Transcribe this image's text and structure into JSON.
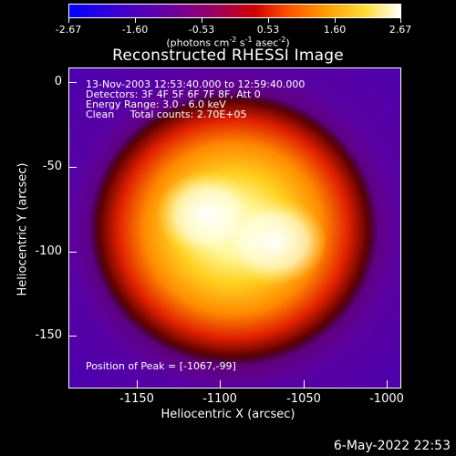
{
  "colorbar": {
    "ticks": [
      "-2.67",
      "-1.60",
      "-0.53",
      "0.53",
      "1.60",
      "2.67"
    ],
    "units_prefix": "(photons cm",
    "units_exp1": "-2",
    "units_mid1": " s",
    "units_exp2": "-1",
    "units_mid2": " asec",
    "units_exp3": "-2",
    "units_suffix": ")"
  },
  "title": "Reconstructed RHESSI Image",
  "info": {
    "time": "13-Nov-2003 12:53:40.000 to 12:59:40.000",
    "detectors": "Detectors: 3F 4F 5F 6F 7F 8F, Att 0",
    "energy": "Energy Range: 3.0 - 6.0 keV",
    "clean": "Clean     Total counts: 2.70E+05",
    "peak": "Position of Peak = [-1067,-99]"
  },
  "axes": {
    "xlabel": "Heliocentric X (arcsec)",
    "ylabel": "Heliocentric Y (arcsec)",
    "xticks": [
      "-1150",
      "-1100",
      "-1050",
      "-1000"
    ],
    "yticks": [
      "0",
      "-50",
      "-100",
      "-150"
    ]
  },
  "footer": {
    "timestamp": "6-May-2022 22:53"
  },
  "colors": {
    "background": "#000000",
    "colormap": [
      "#0000ff",
      "#5000a0",
      "#8a0070",
      "#c00000",
      "#ff6a00",
      "#ffd000",
      "#ffffa0"
    ]
  }
}
